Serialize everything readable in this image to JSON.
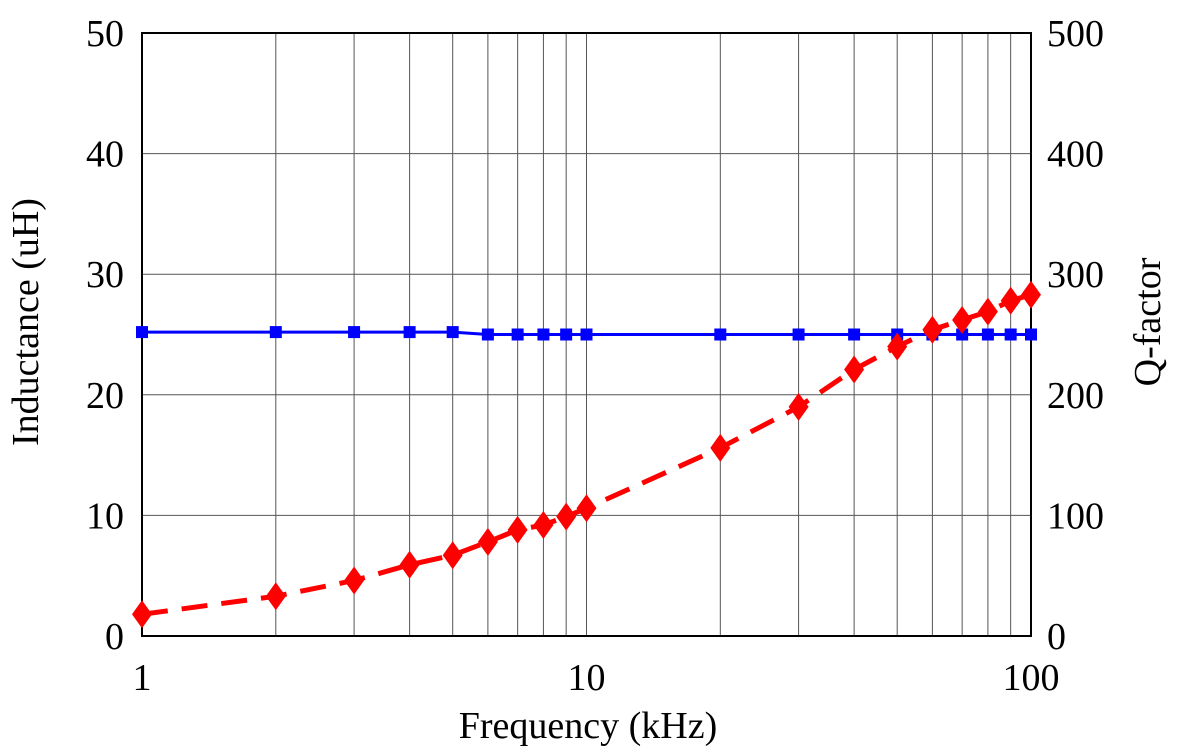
{
  "chart_data": {
    "type": "line",
    "title": "",
    "xlabel": "Frequency (kHz)",
    "ylabel": "Inductance (uH)",
    "y2label": "Q-factor",
    "xscale": "log",
    "xlim": [
      1,
      100
    ],
    "ylim": [
      0,
      50
    ],
    "y2lim": [
      0,
      500
    ],
    "grid": true,
    "x_ticks": [
      1,
      10,
      100
    ],
    "x_tick_labels": [
      "1",
      "10",
      "100"
    ],
    "x_minor_gridlines": [
      2,
      3,
      4,
      5,
      6,
      7,
      8,
      9,
      20,
      30,
      40,
      50,
      60,
      70,
      80,
      90
    ],
    "y_ticks": [
      0,
      10,
      20,
      30,
      40,
      50
    ],
    "y_tick_labels": [
      "0",
      "10",
      "20",
      "30",
      "40",
      "50"
    ],
    "y2_ticks": [
      0,
      100,
      200,
      300,
      400,
      500
    ],
    "y2_tick_labels": [
      "0",
      "100",
      "200",
      "300",
      "400",
      "500"
    ],
    "series": [
      {
        "name": "Inductance",
        "axis": "left",
        "color": "#0000ff",
        "line_style": "solid",
        "marker": "square",
        "x": [
          1,
          2,
          3,
          4,
          5,
          6,
          7,
          8,
          9,
          10,
          20,
          30,
          40,
          50,
          60,
          70,
          80,
          90,
          100
        ],
        "y": [
          25.2,
          25.2,
          25.2,
          25.2,
          25.2,
          25.0,
          25.0,
          25.0,
          25.0,
          25.0,
          25.0,
          25.0,
          25.0,
          25.0,
          25.0,
          25.0,
          25.0,
          25.0,
          25.0
        ]
      },
      {
        "name": "Q-factor",
        "axis": "right",
        "color": "#ff0000",
        "line_style": "dashed",
        "marker": "diamond",
        "x": [
          1,
          2,
          3,
          4,
          5,
          6,
          7,
          8,
          9,
          10,
          20,
          30,
          40,
          50,
          60,
          70,
          80,
          90,
          100
        ],
        "y": [
          18,
          33,
          46,
          59,
          67,
          78,
          88,
          92,
          99,
          106,
          156,
          190,
          221,
          240,
          254,
          262,
          269,
          278,
          283
        ]
      }
    ]
  }
}
